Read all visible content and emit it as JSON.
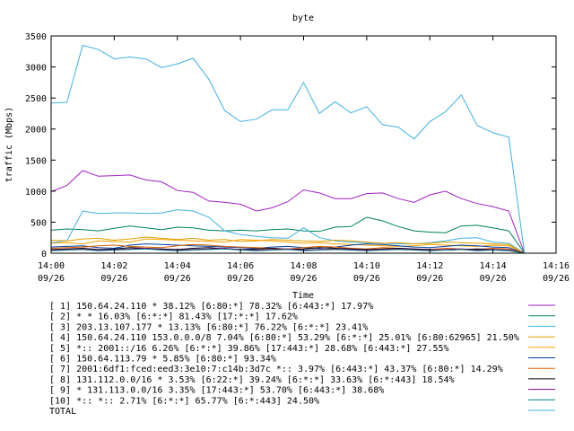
{
  "chart_data": {
    "type": "line",
    "title": "byte",
    "xlabel": "Time",
    "ylabel": "traffic (Mbps)",
    "ylim": [
      0,
      3500
    ],
    "xlim": [
      0,
      16
    ],
    "yticks": [
      0,
      500,
      1000,
      1500,
      2000,
      2500,
      3000,
      3500
    ],
    "xticks": [
      {
        "value": 0,
        "time": "14:00",
        "date": "09/26"
      },
      {
        "value": 2,
        "time": "14:02",
        "date": "09/26"
      },
      {
        "value": 4,
        "time": "14:04",
        "date": "09/26"
      },
      {
        "value": 6,
        "time": "14:06",
        "date": "09/26"
      },
      {
        "value": 8,
        "time": "14:08",
        "date": "09/26"
      },
      {
        "value": 10,
        "time": "14:10",
        "date": "09/26"
      },
      {
        "value": 12,
        "time": "14:12",
        "date": "09/26"
      },
      {
        "value": 14,
        "time": "14:14",
        "date": "09/26"
      },
      {
        "value": 16,
        "time": "14:16",
        "date": "09/26"
      }
    ],
    "x": [
      0,
      0.5,
      1,
      1.5,
      2,
      2.5,
      3,
      3.5,
      4,
      4.5,
      5,
      5.5,
      6,
      6.5,
      7,
      7.5,
      8,
      8.5,
      9,
      9.5,
      10,
      10.5,
      11,
      11.5,
      12,
      12.5,
      13,
      13.5,
      14,
      14.5,
      15
    ],
    "legend_position": "bottom",
    "series": [
      {
        "name": "[ 1] 150.64.24.110 * 38.12%  [6:80:*] 78.32% [6:443:*] 17.97%",
        "color": "#a020c0",
        "values": [
          990,
          1090,
          1330,
          1240,
          1250,
          1260,
          1180,
          1150,
          1010,
          980,
          840,
          820,
          790,
          680,
          730,
          830,
          1020,
          970,
          880,
          880,
          960,
          970,
          880,
          820,
          940,
          1000,
          880,
          800,
          750,
          680,
          0
        ]
      },
      {
        "name": "[ 2] * * 16.03%  [6:*:*] 81.43% [17:*:*] 17.62%",
        "color": "#008060",
        "values": [
          370,
          390,
          380,
          360,
          400,
          440,
          410,
          380,
          420,
          410,
          370,
          360,
          370,
          360,
          380,
          390,
          360,
          350,
          420,
          430,
          580,
          520,
          430,
          360,
          340,
          330,
          440,
          450,
          410,
          360,
          0
        ]
      },
      {
        "name": "[ 3] 203.13.107.177 * 13.13%  [6:80:*] 76.22% [6:*:*] 23.41%",
        "color": "#40b0e0",
        "values": [
          170,
          200,
          680,
          640,
          650,
          650,
          640,
          650,
          700,
          680,
          580,
          360,
          300,
          270,
          250,
          240,
          410,
          250,
          200,
          180,
          170,
          160,
          150,
          150,
          170,
          200,
          240,
          250,
          180,
          160,
          0
        ]
      },
      {
        "name": "[ 4] 150.64.24.110 153.0.0.0/8 7.04%  [6:80:*] 53.29% [6:*:*] 25.01% [6:80:62965] 21.50%",
        "color": "#e0a000",
        "values": [
          210,
          200,
          230,
          240,
          210,
          230,
          260,
          240,
          220,
          240,
          210,
          220,
          190,
          200,
          220,
          210,
          200,
          190,
          210,
          200,
          180,
          160,
          170,
          150,
          160,
          180,
          170,
          160,
          150,
          140,
          0
        ]
      },
      {
        "name": "[ 5] *:: 2001::/16 6.26%  [6:*:*] 39.86% [17:443:*] 28.68% [6:443:*] 27.55%",
        "color": "#ffa000",
        "values": [
          160,
          170,
          150,
          200,
          190,
          180,
          230,
          220,
          210,
          200,
          190,
          180,
          220,
          210,
          200,
          180,
          160,
          170,
          150,
          140,
          130,
          120,
          110,
          120,
          140,
          130,
          120,
          110,
          130,
          120,
          0
        ]
      },
      {
        "name": "[ 6] 150.64.113.79 * 5.85%  [6:80:*] 93.34%",
        "color": "#0040a0",
        "values": [
          100,
          110,
          120,
          90,
          80,
          130,
          150,
          140,
          130,
          120,
          110,
          100,
          90,
          80,
          100,
          110,
          90,
          80,
          100,
          130,
          150,
          140,
          120,
          100,
          90,
          110,
          130,
          120,
          100,
          90,
          0
        ]
      },
      {
        "name": "[ 7] 2001:6df1:fced:eed3:3e10:7:c14b:3d7c *:: 3.97%  [6:443:*] 43.37% [6:80:*] 14.29%",
        "color": "#e06000",
        "values": [
          80,
          90,
          100,
          120,
          130,
          110,
          100,
          90,
          120,
          140,
          130,
          110,
          100,
          90,
          80,
          70,
          90,
          110,
          100,
          80,
          70,
          90,
          80,
          70,
          60,
          80,
          70,
          60,
          80,
          70,
          0
        ]
      },
      {
        "name": "[ 8] 131.112.0.0/16 * 3.53%  [6:22:*] 39.24% [6:*:*] 33.63% [6:*:443] 18.54%",
        "color": "#000000",
        "values": [
          60,
          70,
          80,
          60,
          70,
          90,
          80,
          70,
          60,
          80,
          90,
          70,
          60,
          70,
          80,
          60,
          70,
          90,
          80,
          70,
          60,
          70,
          80,
          70,
          60,
          50,
          60,
          70,
          60,
          50,
          0
        ]
      },
      {
        "name": "[ 9] * 131.113.0.0/16 3.35%  [17:443:*] 53.70% [6:443:*] 38.68%",
        "color": "#800080",
        "values": [
          50,
          60,
          70,
          50,
          60,
          70,
          80,
          60,
          50,
          60,
          70,
          80,
          60,
          50,
          60,
          70,
          50,
          60,
          70,
          60,
          50,
          60,
          70,
          60,
          50,
          60,
          70,
          50,
          60,
          50,
          0
        ]
      },
      {
        "name": "[10] *:: *:: 2.71%  [6:*:*] 65.77% [6:*:443] 24.50%",
        "color": "#008080",
        "values": [
          40,
          50,
          60,
          40,
          50,
          60,
          70,
          50,
          40,
          50,
          60,
          70,
          50,
          40,
          50,
          60,
          40,
          50,
          60,
          50,
          40,
          50,
          60,
          50,
          40,
          50,
          60,
          40,
          50,
          40,
          0
        ]
      },
      {
        "name": "TOTAL",
        "color": "#40b0e0",
        "values": [
          2420,
          2430,
          3350,
          3280,
          3130,
          3160,
          3130,
          2990,
          3050,
          3140,
          2800,
          2300,
          2120,
          2160,
          2310,
          2310,
          2750,
          2250,
          2440,
          2260,
          2360,
          2070,
          2030,
          1840,
          2120,
          2280,
          2550,
          2060,
          1940,
          1870,
          0
        ]
      }
    ]
  }
}
